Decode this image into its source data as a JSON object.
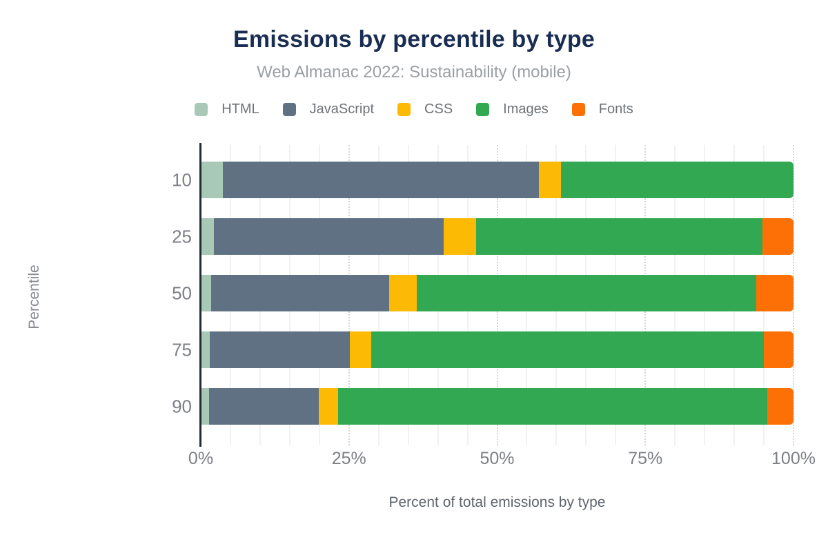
{
  "header": {
    "title": "Emissions by percentile by type",
    "subtitle": "Web Almanac 2022: Sustainability (mobile)"
  },
  "chart_data": {
    "type": "bar",
    "orientation": "horizontal",
    "stacked": true,
    "title": "Emissions by percentile by type",
    "subtitle": "Web Almanac 2022: Sustainability (mobile)",
    "xlabel": "Percent of total emissions by type",
    "ylabel": "Percentile",
    "categories": [
      "10",
      "25",
      "50",
      "75",
      "90"
    ],
    "series": [
      {
        "name": "HTML",
        "color": "#a7c9b6",
        "values": [
          3.7,
          2.2,
          1.8,
          1.5,
          1.4
        ]
      },
      {
        "name": "JavaScript",
        "color": "#5f7183",
        "values": [
          53.4,
          38.8,
          30.0,
          23.6,
          18.5
        ]
      },
      {
        "name": "CSS",
        "color": "#fcba04",
        "values": [
          3.7,
          5.5,
          4.6,
          3.7,
          3.3
        ]
      },
      {
        "name": "Images",
        "color": "#33a852",
        "values": [
          39.2,
          48.3,
          57.3,
          66.2,
          72.4
        ]
      },
      {
        "name": "Fonts",
        "color": "#fc7005",
        "values": [
          0,
          5.2,
          6.3,
          5.0,
          4.4
        ]
      }
    ],
    "xlim": [
      0,
      100
    ],
    "x_ticks": [
      {
        "pct": 0,
        "label": "0%"
      },
      {
        "pct": 25,
        "label": "25%"
      },
      {
        "pct": 50,
        "label": "50%"
      },
      {
        "pct": 75,
        "label": "75%"
      },
      {
        "pct": 100,
        "label": "100%"
      }
    ],
    "grid": {
      "on": true,
      "minor_step": 5,
      "major_step": 25
    },
    "legend_position": "top",
    "colors": {
      "title": "#192d52",
      "subtitle": "#9b9fa3",
      "tick_labels": "#7c7f84",
      "axis_line": "#242a35",
      "minor_grid": "#f0f1f3",
      "major_grid_dotted": "#d2d5d9"
    }
  }
}
